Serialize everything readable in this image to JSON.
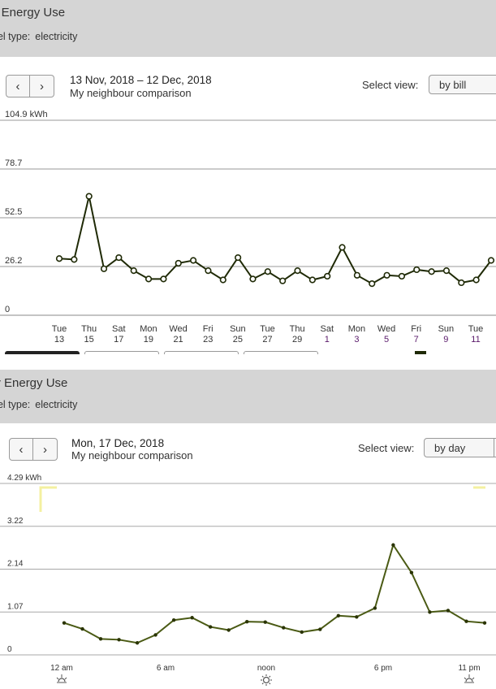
{
  "panels": [
    {
      "title": "y Energy Use",
      "fuel_label": "uel type:",
      "fuel_value": "electricity",
      "nav": {
        "prev": "‹",
        "next": "›"
      },
      "date_range": "13 Nov, 2018 – 12 Dec, 2018",
      "comparison": "My neighbour comparison",
      "select_view_label": "Select view:",
      "select_view_value": "by bill",
      "chart_data": {
        "type": "line",
        "unit_label": "104.9 kWh",
        "y_ticks": [
          "104.9 kWh",
          "78.7",
          "52.5",
          "26.2",
          "0"
        ],
        "ylim": [
          0,
          104.9
        ],
        "grid": true,
        "x_labels": [
          {
            "top": "Tue",
            "bottom": "13"
          },
          {
            "top": "Thu",
            "bottom": "15"
          },
          {
            "top": "Sat",
            "bottom": "17"
          },
          {
            "top": "Mon",
            "bottom": "19"
          },
          {
            "top": "Wed",
            "bottom": "21"
          },
          {
            "top": "Fri",
            "bottom": "23"
          },
          {
            "top": "Sun",
            "bottom": "25"
          },
          {
            "top": "Tue",
            "bottom": "27"
          },
          {
            "top": "Thu",
            "bottom": "29"
          },
          {
            "top": "Sat",
            "bottom": "1"
          },
          {
            "top": "Mon",
            "bottom": "3"
          },
          {
            "top": "Wed",
            "bottom": "5"
          },
          {
            "top": "Fri",
            "bottom": "7"
          },
          {
            "top": "Sun",
            "bottom": "9"
          },
          {
            "top": "Tue",
            "bottom": "11"
          }
        ],
        "series": [
          {
            "color": "#1f2a06",
            "values": [
              30.5,
              30,
              64,
              25,
              31,
              24,
              19.5,
              19.5,
              28,
              29.5,
              24,
              19,
              31,
              19.5,
              23.5,
              18.5,
              24,
              19,
              21,
              36.5,
              21.5,
              17,
              21.5,
              21,
              24.5,
              23.5,
              24,
              17.5,
              19,
              29.5
            ]
          }
        ]
      }
    },
    {
      "title": "ly Energy Use",
      "fuel_label": "uel type:",
      "fuel_value": "electricity",
      "nav": {
        "prev": "‹",
        "next": "›"
      },
      "date_range": "Mon, 17 Dec, 2018",
      "comparison": "My neighbour comparison",
      "select_view_label": "Select view:",
      "select_view_value": "by day",
      "chart_data": {
        "type": "line",
        "unit_label": "4.29 kWh",
        "y_ticks": [
          "4.29 kWh",
          "3.22",
          "2.14",
          "1.07",
          "0"
        ],
        "ylim": [
          0,
          4.29
        ],
        "grid": true,
        "x_labels": [
          {
            "label": "12 am",
            "icon": "sunrise-icon"
          },
          {
            "label": "6 am",
            "icon": ""
          },
          {
            "label": "noon",
            "icon": "sun-icon"
          },
          {
            "label": "6 pm",
            "icon": ""
          },
          {
            "label": "11 pm",
            "icon": "sunset-icon"
          }
        ],
        "series": [
          {
            "color": "#4a5a14",
            "values": [
              0.8,
              0.65,
              0.4,
              0.38,
              0.3,
              0.5,
              0.87,
              0.93,
              0.7,
              0.62,
              0.83,
              0.82,
              0.68,
              0.57,
              0.64,
              0.98,
              0.95,
              1.17,
              2.75,
              2.06,
              1.07,
              1.11,
              0.84,
              0.8
            ]
          }
        ]
      }
    }
  ]
}
